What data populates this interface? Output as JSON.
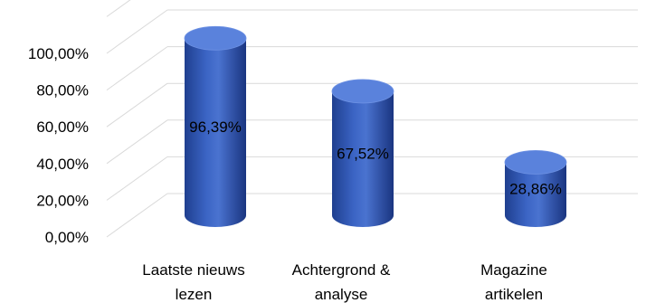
{
  "chart_data": {
    "type": "bar",
    "style": "3d-cylinder",
    "title": "",
    "xlabel": "",
    "ylabel": "",
    "ylim": [
      0,
      100
    ],
    "y_ticks": [
      "0,00%",
      "20,00%",
      "40,00%",
      "60,00%",
      "80,00%",
      "100,00%"
    ],
    "grid": true,
    "legend": "none",
    "categories": [
      [
        "Laatste nieuws",
        "lezen"
      ],
      [
        "Achtergrond &",
        "analyse"
      ],
      [
        "Magazine",
        "artikelen"
      ]
    ],
    "values": [
      96.39,
      67.52,
      28.86
    ],
    "data_labels": [
      "96,39%",
      "67,52%",
      "28,86%"
    ],
    "colors": {
      "bar": "#3b64c4",
      "bar_dark": "#1f3f8f",
      "bar_top": "#5a82dc",
      "grid": "#d9d9d9"
    }
  }
}
